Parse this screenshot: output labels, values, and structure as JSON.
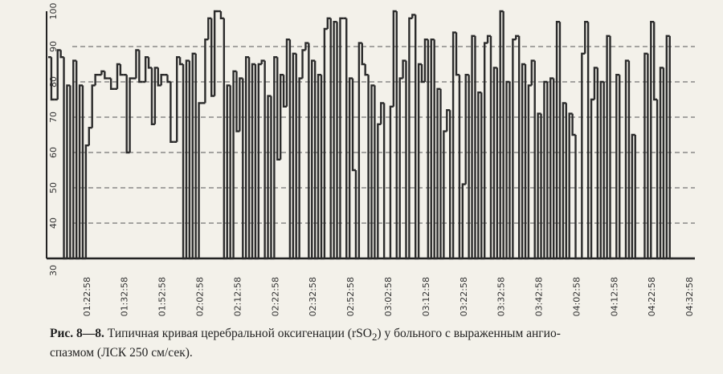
{
  "chart_data": {
    "type": "step",
    "ylim": [
      30,
      100
    ],
    "yticks": [
      30,
      40,
      50,
      60,
      70,
      80,
      90,
      100
    ],
    "grid": true,
    "categories": [
      null,
      null,
      null,
      null,
      null,
      null,
      null,
      null,
      null,
      null,
      null,
      null,
      "01:22:58",
      null,
      null,
      null,
      null,
      null,
      null,
      null,
      null,
      null,
      null,
      null,
      "01:32:58",
      null,
      null,
      null,
      null,
      null,
      null,
      null,
      null,
      null,
      null,
      null,
      "01:52:58",
      null,
      null,
      null,
      null,
      null,
      null,
      null,
      null,
      null,
      null,
      null,
      "02:02:58",
      null,
      null,
      null,
      null,
      null,
      null,
      null,
      null,
      null,
      null,
      null,
      "02:12:58",
      null,
      null,
      null,
      null,
      null,
      null,
      null,
      null,
      null,
      null,
      null,
      "02:22:58",
      null,
      null,
      null,
      null,
      null,
      null,
      null,
      null,
      null,
      null,
      null,
      "02:32:58",
      null,
      null,
      null,
      null,
      null,
      null,
      null,
      null,
      null,
      null,
      null,
      "02:52:58",
      null,
      null,
      null,
      null,
      null,
      null,
      null,
      null,
      null,
      null,
      null,
      "03:02:58",
      null,
      null,
      null,
      null,
      null,
      null,
      null,
      null,
      null,
      null,
      null,
      "03:12:58",
      null,
      null,
      null,
      null,
      null,
      null,
      null,
      null,
      null,
      null,
      null,
      "03:22:58",
      null,
      null,
      null,
      null,
      null,
      null,
      null,
      null,
      null,
      null,
      null,
      "03:32:58",
      null,
      null,
      null,
      null,
      null,
      null,
      null,
      null,
      null,
      null,
      null,
      "03:42:58",
      null,
      null,
      null,
      null,
      null,
      null,
      null,
      null,
      null,
      null,
      null,
      "04:02:58",
      null,
      null,
      null,
      null,
      null,
      null,
      null,
      null,
      null,
      null,
      null,
      "04:12:58",
      null,
      null,
      null,
      null,
      null,
      null,
      null,
      null,
      null,
      null,
      null,
      "04:22:58",
      null,
      null,
      null,
      null,
      null,
      null,
      null,
      null,
      null,
      null,
      null,
      "04:32:58",
      null
    ],
    "series": [
      {
        "color": "#2b2b2b",
        "values": [
          87,
          75,
          75,
          89,
          87,
          30,
          79,
          30,
          86,
          30,
          79,
          30,
          62,
          67,
          79,
          82,
          82,
          83,
          81,
          81,
          78,
          78,
          85,
          82,
          82,
          60,
          81,
          81,
          89,
          80,
          80,
          87,
          84,
          68,
          84,
          79,
          82,
          82,
          80,
          63,
          63,
          87,
          85,
          30,
          86,
          30,
          88,
          30,
          74,
          74,
          92,
          98,
          76,
          100,
          100,
          98,
          30,
          79,
          30,
          83,
          66,
          81,
          30,
          87,
          30,
          85,
          30,
          85,
          86,
          30,
          76,
          30,
          87,
          58,
          82,
          73,
          92,
          30,
          88,
          30,
          81,
          89,
          91,
          30,
          86,
          30,
          82,
          30,
          95,
          98,
          30,
          97,
          30,
          98,
          98,
          30,
          81,
          55,
          30,
          91,
          85,
          82,
          30,
          79,
          30,
          68,
          74,
          30,
          30,
          73,
          100,
          30,
          81,
          86,
          30,
          98,
          99,
          30,
          85,
          80,
          92,
          30,
          92,
          30,
          78,
          30,
          66,
          72,
          30,
          94,
          82,
          30,
          51,
          82,
          30,
          93,
          30,
          77,
          30,
          91,
          93,
          30,
          84,
          30,
          100,
          30,
          80,
          30,
          92,
          93,
          30,
          85,
          30,
          79,
          86,
          30,
          71,
          30,
          80,
          30,
          81,
          30,
          97,
          30,
          74,
          30,
          71,
          65,
          30,
          30,
          88,
          97,
          30,
          75,
          84,
          30,
          80,
          30,
          93,
          30,
          30,
          82,
          30,
          30,
          86,
          30,
          65,
          30,
          30,
          30,
          88,
          30,
          97,
          75,
          30,
          84,
          30,
          93,
          30,
          30,
          30,
          30,
          30,
          30,
          30,
          30
        ]
      }
    ],
    "caption_label": "Рис. 8—8.",
    "caption": [
      "Типичная кривая церебральной оксигенации (rSO",
      "2",
      ") у больного с выраженным ангио-",
      "спазмом (ЛСК 250 см/сек)."
    ]
  }
}
